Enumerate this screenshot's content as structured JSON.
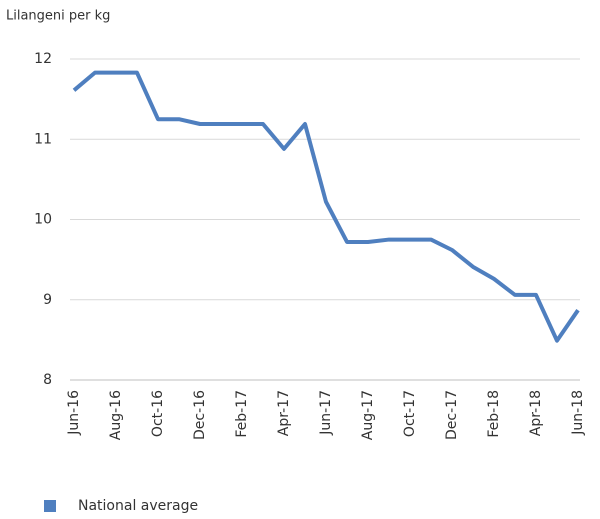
{
  "chart_data": {
    "type": "line",
    "y_label": "Lilangeni per kg",
    "categories": [
      "Jun-16",
      null,
      "Aug-16",
      null,
      "Oct-16",
      null,
      "Dec-16",
      null,
      "Feb-17",
      null,
      "Apr-17",
      null,
      "Jun-17",
      null,
      "Aug-17",
      null,
      "Oct-17",
      null,
      "Dec-17",
      null,
      "Feb-18",
      null,
      "Apr-18",
      null,
      "Jun-18"
    ],
    "series": [
      {
        "name": "National average",
        "color": "#4f7fbf",
        "values": [
          11.61,
          11.83,
          11.83,
          11.83,
          11.25,
          11.25,
          11.19,
          11.19,
          11.19,
          11.19,
          10.88,
          11.19,
          10.22,
          9.72,
          9.72,
          9.75,
          9.75,
          9.75,
          9.62,
          9.41,
          9.26,
          9.06,
          9.06,
          8.49,
          8.87
        ]
      }
    ],
    "ylim": [
      8,
      12
    ],
    "yticks": [
      8,
      9,
      10,
      11,
      12
    ],
    "grid": true,
    "legend": "bottom-left"
  }
}
